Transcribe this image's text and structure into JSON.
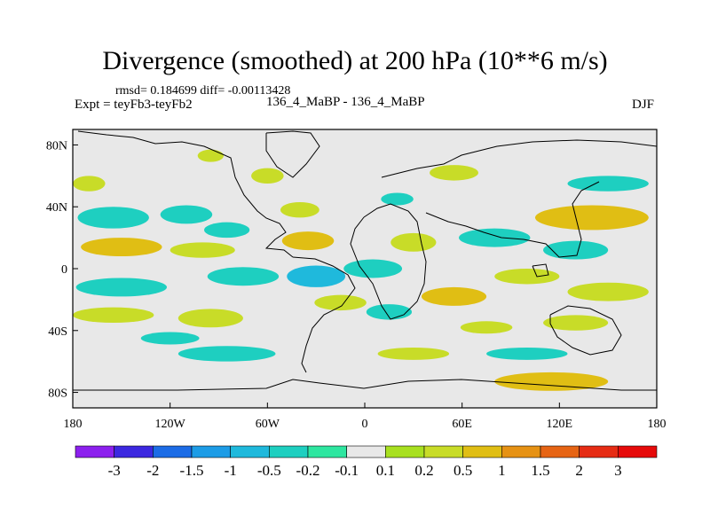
{
  "chart_data": {
    "type": "heatmap",
    "title": "Divergence (smoothed) at 200 hPa (10**6 m/s)",
    "rmsd_label": "rmsd= 0.184699 diff= -0.00113428",
    "experiment_label": "Expt = teyFb3-teyFb2",
    "experiment_names": "136_4_MaBP - 136_4_MaBP",
    "season": "DJF",
    "xlim": [
      -180,
      180
    ],
    "ylim": [
      -90,
      90
    ],
    "x_ticks": [
      {
        "value": -180,
        "label": "180"
      },
      {
        "value": -120,
        "label": "120W"
      },
      {
        "value": -60,
        "label": "60W"
      },
      {
        "value": 0,
        "label": "0"
      },
      {
        "value": 60,
        "label": "60E"
      },
      {
        "value": 120,
        "label": "120E"
      },
      {
        "value": 180,
        "label": "180"
      }
    ],
    "y_ticks": [
      {
        "value": 80,
        "label": "80N"
      },
      {
        "value": 40,
        "label": "40N"
      },
      {
        "value": 0,
        "label": "0"
      },
      {
        "value": -40,
        "label": "40S"
      },
      {
        "value": -80,
        "label": "80S"
      }
    ],
    "colorbar": {
      "boundaries": [
        "-3",
        "-2",
        "-1.5",
        "-1",
        "-0.5",
        "-0.2",
        "-0.1",
        "0.1",
        "0.2",
        "0.5",
        "1",
        "1.5",
        "2",
        "3"
      ],
      "colors": [
        "#8c20ee",
        "#3c28e0",
        "#1c6ce6",
        "#1d9ce6",
        "#1fb9dc",
        "#1ecfc0",
        "#2ee6a0",
        "#e8e8e8",
        "#a8e020",
        "#c8dc28",
        "#e0be14",
        "#e69214",
        "#e66414",
        "#e62c14",
        "#e60a0a"
      ]
    },
    "regions": [
      {
        "lon": -155,
        "lat": 33,
        "rlon": 22,
        "rlat": 7,
        "level": "-0.2"
      },
      {
        "lon": -110,
        "lat": 35,
        "rlon": 16,
        "rlat": 6,
        "level": "-0.2"
      },
      {
        "lon": -85,
        "lat": 25,
        "rlon": 14,
        "rlat": 5,
        "level": "-0.2"
      },
      {
        "lon": -150,
        "lat": 14,
        "rlon": 25,
        "rlat": 6,
        "level": "0.5"
      },
      {
        "lon": -100,
        "lat": 12,
        "rlon": 20,
        "rlat": 5,
        "level": "0.2"
      },
      {
        "lon": -150,
        "lat": -12,
        "rlon": 28,
        "rlat": 6,
        "level": "-0.2"
      },
      {
        "lon": -75,
        "lat": -5,
        "rlon": 22,
        "rlat": 6,
        "level": "-0.2"
      },
      {
        "lon": -155,
        "lat": -30,
        "rlon": 25,
        "rlat": 5,
        "level": "0.2"
      },
      {
        "lon": -95,
        "lat": -32,
        "rlon": 20,
        "rlat": 6,
        "level": "0.2"
      },
      {
        "lon": -120,
        "lat": -45,
        "rlon": 18,
        "rlat": 4,
        "level": "-0.2"
      },
      {
        "lon": -95,
        "lat": 73,
        "rlon": 8,
        "rlat": 4,
        "level": "0.2"
      },
      {
        "lon": -60,
        "lat": 60,
        "rlon": 10,
        "rlat": 5,
        "level": "0.2"
      },
      {
        "lon": -40,
        "lat": 38,
        "rlon": 12,
        "rlat": 5,
        "level": "0.2"
      },
      {
        "lon": -35,
        "lat": 18,
        "rlon": 16,
        "rlat": 6,
        "level": "0.5"
      },
      {
        "lon": -30,
        "lat": -5,
        "rlon": 18,
        "rlat": 7,
        "level": "-0.5"
      },
      {
        "lon": 5,
        "lat": 0,
        "rlon": 18,
        "rlat": 6,
        "level": "-0.2"
      },
      {
        "lon": 30,
        "lat": 17,
        "rlon": 14,
        "rlat": 6,
        "level": "0.2"
      },
      {
        "lon": -15,
        "lat": -22,
        "rlon": 16,
        "rlat": 5,
        "level": "0.2"
      },
      {
        "lon": 15,
        "lat": -28,
        "rlon": 14,
        "rlat": 5,
        "level": "-0.2"
      },
      {
        "lon": 55,
        "lat": -18,
        "rlon": 20,
        "rlat": 6,
        "level": "0.5"
      },
      {
        "lon": 80,
        "lat": 20,
        "rlon": 22,
        "rlat": 6,
        "level": "-0.2"
      },
      {
        "lon": 130,
        "lat": 12,
        "rlon": 20,
        "rlat": 6,
        "level": "-0.2"
      },
      {
        "lon": 140,
        "lat": 33,
        "rlon": 35,
        "rlat": 8,
        "level": "0.5"
      },
      {
        "lon": 100,
        "lat": -5,
        "rlon": 20,
        "rlat": 5,
        "level": "0.2"
      },
      {
        "lon": 150,
        "lat": -15,
        "rlon": 25,
        "rlat": 6,
        "level": "0.2"
      },
      {
        "lon": 130,
        "lat": -35,
        "rlon": 20,
        "rlat": 5,
        "level": "0.2"
      },
      {
        "lon": 75,
        "lat": -38,
        "rlon": 16,
        "rlat": 4,
        "level": "0.2"
      },
      {
        "lon": 30,
        "lat": -55,
        "rlon": 22,
        "rlat": 4,
        "level": "0.2"
      },
      {
        "lon": 100,
        "lat": -55,
        "rlon": 25,
        "rlat": 4,
        "level": "-0.2"
      },
      {
        "lon": 115,
        "lat": -73,
        "rlon": 35,
        "rlat": 6,
        "level": "0.5"
      },
      {
        "lon": -85,
        "lat": -55,
        "rlon": 30,
        "rlat": 5,
        "level": "-0.2"
      },
      {
        "lon": 55,
        "lat": 62,
        "rlon": 15,
        "rlat": 5,
        "level": "0.2"
      },
      {
        "lon": 150,
        "lat": 55,
        "rlon": 25,
        "rlat": 5,
        "level": "-0.2"
      },
      {
        "lon": 20,
        "lat": 45,
        "rlon": 10,
        "rlat": 4,
        "level": "-0.2"
      },
      {
        "lon": -170,
        "lat": 55,
        "rlon": 10,
        "rlat": 5,
        "level": "0.2"
      }
    ]
  }
}
